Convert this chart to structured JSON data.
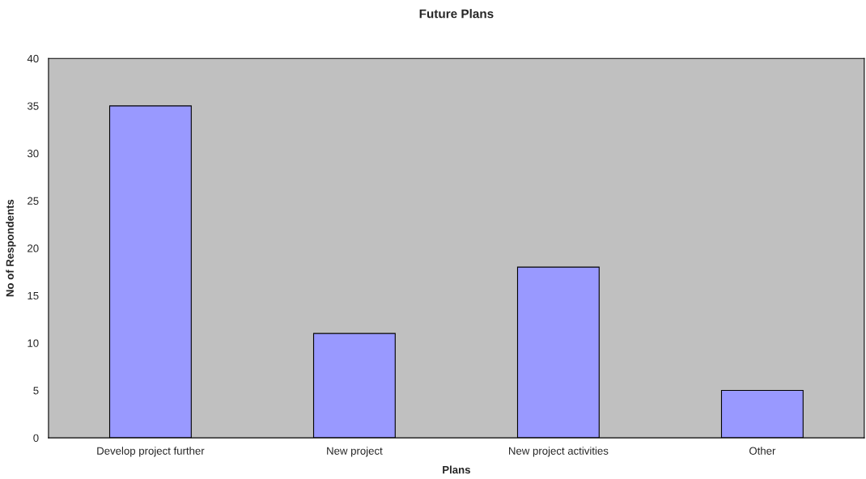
{
  "chart_data": {
    "type": "bar",
    "title": "Future Plans",
    "xlabel": "Plans",
    "ylabel": "No of Respondents",
    "categories": [
      "Develop project further",
      "New project",
      "New project activities",
      "Other"
    ],
    "values": [
      35,
      11,
      18,
      5
    ],
    "color": "#9999ff",
    "ylim": [
      0,
      40
    ],
    "yticks": [
      0,
      5,
      10,
      15,
      20,
      25,
      30,
      35,
      40
    ],
    "grid": false,
    "legend": false
  }
}
